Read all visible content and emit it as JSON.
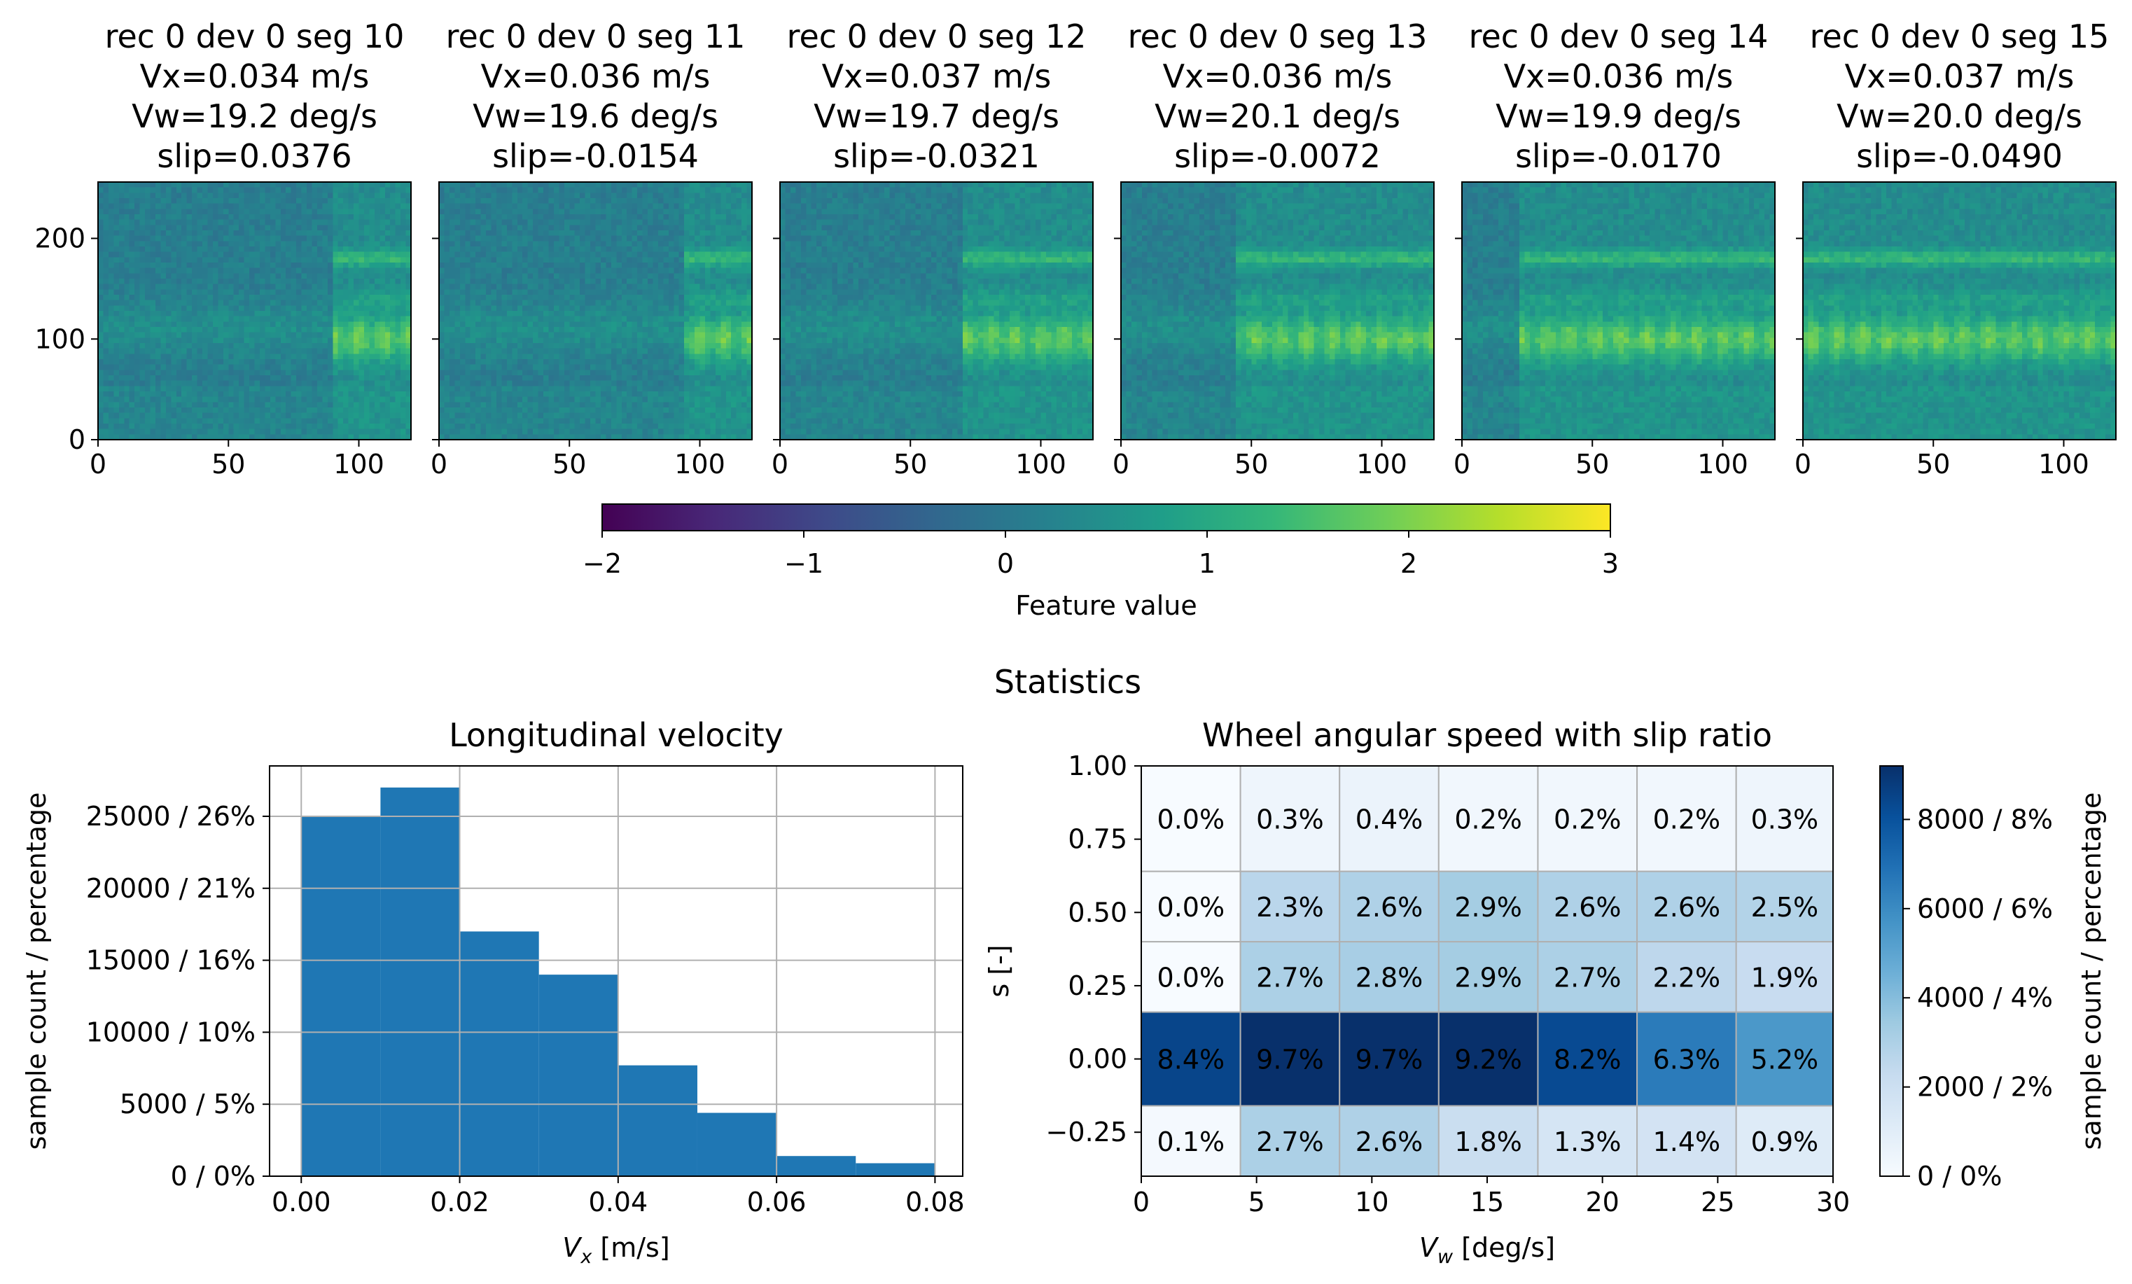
{
  "colors": {
    "viridis": [
      "#440154",
      "#482878",
      "#3e4a89",
      "#31688e",
      "#26828e",
      "#1f9e89",
      "#35b779",
      "#6ece58",
      "#b5de2b",
      "#fde725"
    ],
    "blues": [
      "#f7fbff",
      "#deebf7",
      "#c6dbef",
      "#9ecae1",
      "#6baed6",
      "#4292c6",
      "#2171b5",
      "#08519c",
      "#08306b"
    ],
    "bar": "#1f77b4",
    "grid": "#b0b0b0"
  },
  "chart_data": [
    {
      "type": "heatmap",
      "name": "spectrograms",
      "segments": [
        {
          "title": [
            "rec 0 dev 0 seg 10",
            "Vx=0.034 m/s",
            "Vw=19.2 deg/s",
            "slip=0.0376"
          ],
          "vx": 0.034,
          "vw": 19.2,
          "slip": 0.0376,
          "onset": 90
        },
        {
          "title": [
            "rec 0 dev 0 seg 11",
            "Vx=0.036 m/s",
            "Vw=19.6 deg/s",
            "slip=-0.0154"
          ],
          "vx": 0.036,
          "vw": 19.6,
          "slip": -0.0154,
          "onset": 95
        },
        {
          "title": [
            "rec 0 dev 0 seg 12",
            "Vx=0.037 m/s",
            "Vw=19.7 deg/s",
            "slip=-0.0321"
          ],
          "vx": 0.037,
          "vw": 19.7,
          "slip": -0.0321,
          "onset": 70
        },
        {
          "title": [
            "rec 0 dev 0 seg 13",
            "Vx=0.036 m/s",
            "Vw=20.1 deg/s",
            "slip=-0.0072"
          ],
          "vx": 0.036,
          "vw": 20.1,
          "slip": -0.0072,
          "onset": 45
        },
        {
          "title": [
            "rec 0 dev 0 seg 14",
            "Vx=0.036 m/s",
            "Vw=19.9 deg/s",
            "slip=-0.0170"
          ],
          "vx": 0.036,
          "vw": 19.9,
          "slip": -0.017,
          "onset": 22
        },
        {
          "title": [
            "rec 0 dev 0 seg 15",
            "Vx=0.037 m/s",
            "Vw=20.0 deg/s",
            "slip=-0.0490"
          ],
          "vx": 0.037,
          "vw": 20.0,
          "slip": -0.049,
          "onset": 0
        }
      ],
      "xlim": [
        0,
        120
      ],
      "ylim": [
        0,
        256
      ],
      "xticks": [
        0,
        50,
        100
      ],
      "yticks": [
        0,
        100,
        200
      ],
      "xtick_labels": [
        "0",
        "50",
        "100"
      ],
      "ytick_labels": [
        "0",
        "100",
        "200"
      ]
    },
    {
      "type": "colorbar",
      "name": "feature-colorbar",
      "range": [
        -2,
        3
      ],
      "ticks": [
        -2,
        -1,
        0,
        1,
        2,
        3
      ],
      "tick_labels": [
        "−2",
        "−1",
        "0",
        "1",
        "2",
        "3"
      ],
      "label": "Feature value"
    },
    {
      "type": "bar",
      "name": "longitudinal-velocity-histogram",
      "title": "Longitudinal velocity",
      "xlabel_main": "V",
      "xlabel_sub": "x",
      "xlabel_unit": " [m/s]",
      "ylabel": "sample count / percentage",
      "bin_edges": [
        0.0,
        0.01,
        0.02,
        0.03,
        0.04,
        0.05,
        0.06,
        0.07,
        0.08
      ],
      "values": [
        25000,
        27000,
        17000,
        14000,
        7700,
        4400,
        1400,
        900
      ],
      "xlim": [
        -0.004,
        0.0835
      ],
      "ylim": [
        0,
        28500
      ],
      "xticks": [
        0.0,
        0.02,
        0.04,
        0.06,
        0.08
      ],
      "xtick_labels": [
        "0.00",
        "0.02",
        "0.04",
        "0.06",
        "0.08"
      ],
      "yticks": [
        0,
        5000,
        10000,
        15000,
        20000,
        25000
      ],
      "ytick_labels": [
        "0 / 0%",
        "5000 / 5%",
        "10000 / 10%",
        "15000 / 16%",
        "20000 / 21%",
        "25000 / 26%"
      ],
      "grid": true
    },
    {
      "type": "heatmap",
      "name": "wheel-speed-slip-heatmap",
      "title": "Wheel angular speed with slip ratio",
      "xlabel_main": "V",
      "xlabel_sub": "w",
      "xlabel_unit": " [deg/s]",
      "ylabel": "s [-]",
      "x_edges": [
        0.0,
        4.3,
        8.6,
        12.9,
        17.2,
        21.5,
        25.8,
        30.0
      ],
      "y_edges": [
        -0.4,
        -0.16,
        0.16,
        0.4,
        0.64,
        1.0
      ],
      "xlim": [
        0,
        30
      ],
      "ylim": [
        -0.4,
        1.0
      ],
      "rows_top_to_bottom": [
        [
          "0.0%",
          "0.3%",
          "0.4%",
          "0.2%",
          "0.2%",
          "0.2%",
          "0.3%"
        ],
        [
          "0.0%",
          "2.3%",
          "2.6%",
          "2.9%",
          "2.6%",
          "2.6%",
          "2.5%"
        ],
        [
          "0.0%",
          "2.7%",
          "2.8%",
          "2.9%",
          "2.7%",
          "2.2%",
          "1.9%"
        ],
        [
          "8.4%",
          "9.7%",
          "9.7%",
          "9.2%",
          "8.2%",
          "6.3%",
          "5.2%"
        ],
        [
          "0.1%",
          "2.7%",
          "2.6%",
          "1.8%",
          "1.3%",
          "1.4%",
          "0.9%"
        ]
      ],
      "xticks": [
        0,
        5,
        10,
        15,
        20,
        25,
        30
      ],
      "xtick_labels": [
        "0",
        "5",
        "10",
        "15",
        "20",
        "25",
        "30"
      ],
      "yticks": [
        -0.25,
        0.0,
        0.25,
        0.5,
        0.75,
        1.0
      ],
      "ytick_labels": [
        "−0.25",
        "0.00",
        "0.25",
        "0.50",
        "0.75",
        "1.00"
      ],
      "colorbar": {
        "range": [
          0,
          9200
        ],
        "ticks": [
          0,
          2000,
          4000,
          6000,
          8000
        ],
        "tick_labels": [
          "0 / 0%",
          "2000 / 2%",
          "4000 / 4%",
          "6000 / 6%",
          "8000 / 8%"
        ],
        "label": "sample count / percentage"
      },
      "percent_max": 9.7
    }
  ],
  "suptitle": "Statistics"
}
